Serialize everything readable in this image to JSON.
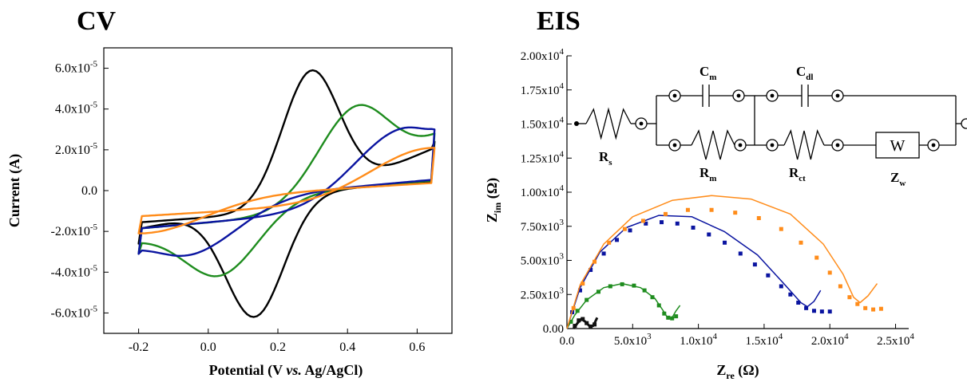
{
  "panels": {
    "cv_title": "CV",
    "eis_title": "EIS"
  },
  "chart_data": [
    {
      "type": "line",
      "title": "CV",
      "xlabel": "Potential (V vs. Ag/AgCl)",
      "ylabel": "Current (A)",
      "xlim": [
        -0.3,
        0.7
      ],
      "ylim": [
        -7e-05,
        7e-05
      ],
      "x_ticks": [
        -0.2,
        0.0,
        0.2,
        0.4,
        0.6
      ],
      "x_tick_labels": [
        "-0.2",
        "0.0",
        "0.2",
        "0.4",
        "0.6"
      ],
      "y_ticks": [
        -6e-05,
        -4e-05,
        -2e-05,
        0,
        2e-05,
        4e-05,
        6e-05
      ],
      "y_tick_labels": [
        "-6.0x10-5",
        "-4.0x10-5",
        "-2.0x10-5",
        "0.0",
        "2.0x10-5",
        "4.0x10-5",
        "6.0x10-5"
      ],
      "grid": false,
      "series": [
        {
          "color": "#000000",
          "peak_anodic": [
            0.3,
            5.9e-05
          ],
          "peak_cathodic": [
            0.13,
            -6.2e-05
          ],
          "end_high": [
            0.65,
            2.4e-05
          ],
          "end_low": [
            -0.2,
            -2.6e-05
          ]
        },
        {
          "color": "#1e8c1e",
          "peak_anodic": [
            0.44,
            4.2e-05
          ],
          "peak_cathodic": [
            0.02,
            -4.2e-05
          ],
          "end_high": [
            0.65,
            2.8e-05
          ],
          "end_low": [
            -0.2,
            -3.1e-05
          ]
        },
        {
          "color": "#0a14a0",
          "peak_anodic": [
            0.58,
            3.1e-05
          ],
          "peak_cathodic": [
            -0.08,
            -3.2e-05
          ],
          "end_high": [
            0.65,
            3e-05
          ],
          "end_low": [
            -0.2,
            -3.1e-05
          ]
        },
        {
          "color": "#ff8c1a",
          "peak_anodic": [
            0.65,
            2.1e-05
          ],
          "peak_cathodic": [
            -0.2,
            -2.1e-05
          ],
          "end_high": [
            0.65,
            2.1e-05
          ],
          "end_low": [
            -0.2,
            -2.1e-05
          ]
        }
      ]
    },
    {
      "type": "scatter",
      "title": "EIS",
      "xlabel_main": "Z",
      "xlabel_sub": "re",
      "xlabel_unit": " (Ω)",
      "ylabel_main": "Z",
      "ylabel_sub": "im",
      "ylabel_unit": " (Ω)",
      "xlim": [
        0,
        26000
      ],
      "ylim": [
        0,
        20000
      ],
      "x_ticks": [
        0,
        5000,
        10000,
        15000,
        20000,
        25000
      ],
      "x_tick_labels": [
        {
          "m": "0.0",
          "e": ""
        },
        {
          "m": "5.0x10",
          "e": "3"
        },
        {
          "m": "1.0x10",
          "e": "4"
        },
        {
          "m": "1.5x10",
          "e": "4"
        },
        {
          "m": "2.0x10",
          "e": "4"
        },
        {
          "m": "2.5x10",
          "e": "4"
        }
      ],
      "y_ticks": [
        0,
        2500,
        5000,
        7500,
        10000,
        12500,
        15000,
        17500,
        20000
      ],
      "y_tick_labels": [
        {
          "m": "0.00",
          "e": ""
        },
        {
          "m": "2.50x10",
          "e": "3"
        },
        {
          "m": "5.00x10",
          "e": "3"
        },
        {
          "m": "7.50x10",
          "e": "3"
        },
        {
          "m": "1.00x10",
          "e": "4"
        },
        {
          "m": "1.25x10",
          "e": "4"
        },
        {
          "m": "1.50x10",
          "e": "4"
        },
        {
          "m": "1.75x10",
          "e": "4"
        },
        {
          "m": "2.00x10",
          "e": "4"
        }
      ],
      "grid": false,
      "series": [
        {
          "color": "#111111",
          "fit": [
            [
              500,
              0
            ],
            [
              800,
              400
            ],
            [
              1100,
              700
            ],
            [
              1400,
              500
            ],
            [
              1700,
              200
            ],
            [
              2000,
              200
            ],
            [
              2300,
              800
            ]
          ],
          "points": [
            [
              600,
              200
            ],
            [
              900,
              600
            ],
            [
              1200,
              700
            ],
            [
              1500,
              400
            ],
            [
              1800,
              150
            ],
            [
              2100,
              300
            ]
          ]
        },
        {
          "color": "#1e8c1e",
          "fit": [
            [
              0,
              0
            ],
            [
              600,
              1000
            ],
            [
              1500,
              2100
            ],
            [
              2800,
              3000
            ],
            [
              4200,
              3300
            ],
            [
              5600,
              3000
            ],
            [
              6700,
              2200
            ],
            [
              7400,
              1200
            ],
            [
              7700,
              700
            ],
            [
              8000,
              800
            ],
            [
              8300,
              1300
            ],
            [
              8600,
              1700
            ]
          ],
          "points": [
            [
              300,
              500
            ],
            [
              800,
              1300
            ],
            [
              1500,
              2100
            ],
            [
              2400,
              2700
            ],
            [
              3300,
              3100
            ],
            [
              4200,
              3250
            ],
            [
              5100,
              3150
            ],
            [
              5900,
              2800
            ],
            [
              6500,
              2300
            ],
            [
              7000,
              1700
            ],
            [
              7400,
              1100
            ],
            [
              7700,
              800
            ],
            [
              8000,
              750
            ],
            [
              8300,
              900
            ]
          ]
        },
        {
          "color": "#0a14a0",
          "fit": [
            [
              0,
              0
            ],
            [
              1000,
              3000
            ],
            [
              2500,
              5600
            ],
            [
              4500,
              7400
            ],
            [
              7000,
              8300
            ],
            [
              9500,
              8200
            ],
            [
              12000,
              7100
            ],
            [
              14500,
              5400
            ],
            [
              16500,
              3300
            ],
            [
              17800,
              1900
            ],
            [
              18300,
              1600
            ],
            [
              18800,
              2000
            ],
            [
              19300,
              2800
            ]
          ],
          "points": [
            [
              400,
              1200
            ],
            [
              1000,
              2800
            ],
            [
              1800,
              4300
            ],
            [
              2800,
              5500
            ],
            [
              3800,
              6500
            ],
            [
              4800,
              7200
            ],
            [
              6000,
              7700
            ],
            [
              7200,
              7800
            ],
            [
              8400,
              7700
            ],
            [
              9600,
              7400
            ],
            [
              10800,
              6900
            ],
            [
              12000,
              6300
            ],
            [
              13200,
              5500
            ],
            [
              14300,
              4700
            ],
            [
              15300,
              3900
            ],
            [
              16300,
              3100
            ],
            [
              17000,
              2500
            ],
            [
              17600,
              1900
            ],
            [
              18200,
              1500
            ],
            [
              18800,
              1300
            ],
            [
              19400,
              1250
            ],
            [
              20000,
              1250
            ]
          ]
        },
        {
          "color": "#ff8c1a",
          "fit": [
            [
              0,
              0
            ],
            [
              1000,
              3200
            ],
            [
              2800,
              6200
            ],
            [
              5000,
              8200
            ],
            [
              8000,
              9400
            ],
            [
              11000,
              9750
            ],
            [
              14000,
              9500
            ],
            [
              17000,
              8400
            ],
            [
              19500,
              6200
            ],
            [
              21000,
              4000
            ],
            [
              21800,
              2300
            ],
            [
              22300,
              1900
            ],
            [
              22900,
              2400
            ],
            [
              23600,
              3300
            ]
          ],
          "points": [
            [
              500,
              1500
            ],
            [
              1200,
              3300
            ],
            [
              2100,
              4900
            ],
            [
              3200,
              6300
            ],
            [
              4400,
              7300
            ],
            [
              5800,
              7900
            ],
            [
              7500,
              8400
            ],
            [
              9200,
              8700
            ],
            [
              11000,
              8700
            ],
            [
              12800,
              8500
            ],
            [
              14600,
              8100
            ],
            [
              16300,
              7300
            ],
            [
              17800,
              6300
            ],
            [
              19000,
              5200
            ],
            [
              20000,
              4100
            ],
            [
              20800,
              3100
            ],
            [
              21500,
              2300
            ],
            [
              22100,
              1800
            ],
            [
              22700,
              1500
            ],
            [
              23300,
              1400
            ],
            [
              23900,
              1450
            ]
          ]
        }
      ],
      "circuit": {
        "labels": [
          {
            "main": "R",
            "sub": "s"
          },
          {
            "main": "C",
            "sub": "m"
          },
          {
            "main": "R",
            "sub": "m"
          },
          {
            "main": "C",
            "sub": "dl"
          },
          {
            "main": "R",
            "sub": "ct"
          },
          {
            "main": "Z",
            "sub": "w"
          }
        ],
        "warburg_symbol": "W"
      }
    }
  ]
}
